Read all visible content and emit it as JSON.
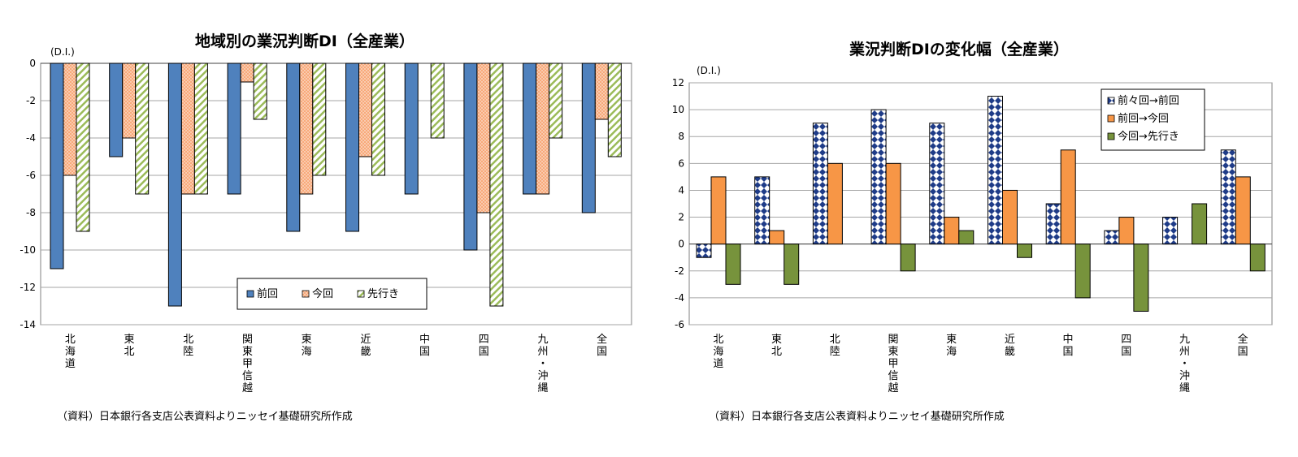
{
  "charts": [
    {
      "title": "地域別の業況判断DI（全産業）",
      "unit": "(D.I.)",
      "source": "（資料）日本銀行各支店公表資料よりニッセイ基礎研究所作成",
      "chart_data": {
        "type": "bar",
        "categories": [
          "北海道",
          "東北",
          "北陸",
          "関東甲信越",
          "東海",
          "近畿",
          "中国",
          "四国",
          "九州・沖縄",
          "全国"
        ],
        "series": [
          {
            "name": "前回",
            "values": [
              -11,
              -5,
              -13,
              -7,
              -9,
              -9,
              -7,
              -10,
              -7,
              -8
            ],
            "color": "#4f81bd",
            "pattern": "solid"
          },
          {
            "name": "今回",
            "values": [
              -6,
              -4,
              -7,
              -1,
              -7,
              -5,
              0,
              -8,
              -7,
              -3
            ],
            "color": "#f8a97a",
            "pattern": "dots"
          },
          {
            "name": "先行き",
            "values": [
              -9,
              -7,
              -7,
              -3,
              -6,
              -6,
              -4,
              -13,
              -4,
              -5
            ],
            "color": "#9bbb59",
            "pattern": "hatch"
          }
        ],
        "ylim": [
          -14,
          0
        ],
        "yticks": [
          "0",
          "-2",
          "-4",
          "-6",
          "-8",
          "-10",
          "-12",
          "-14"
        ],
        "grid": true,
        "legend": "bottom-right"
      }
    },
    {
      "title": "業況判断DIの変化幅（全産業）",
      "unit": "(D.I.)",
      "source": "（資料）日本銀行各支店公表資料よりニッセイ基礎研究所作成",
      "chart_data": {
        "type": "bar",
        "categories": [
          "北海道",
          "東北",
          "北陸",
          "関東甲信越",
          "東海",
          "近畿",
          "中国",
          "四国",
          "九州・沖縄",
          "全国"
        ],
        "series": [
          {
            "name": "前々回→前回",
            "values": [
              -1,
              5,
              9,
              10,
              9,
              11,
              3,
              1,
              2,
              7
            ],
            "color": "#1f3c88",
            "pattern": "diamond"
          },
          {
            "name": "前回→今回",
            "values": [
              5,
              1,
              6,
              6,
              2,
              4,
              7,
              2,
              0,
              5
            ],
            "color": "#f79646",
            "pattern": "solid"
          },
          {
            "name": "今回→先行き",
            "values": [
              -3,
              -3,
              0,
              -2,
              1,
              -1,
              -4,
              -5,
              3,
              -2
            ],
            "color": "#77933c",
            "pattern": "solid"
          }
        ],
        "ylim": [
          -6,
          12
        ],
        "yticks": [
          "12",
          "10",
          "8",
          "6",
          "4",
          "2",
          "0",
          "-2",
          "-4",
          "-6"
        ],
        "grid": true,
        "legend": "top-right"
      }
    }
  ]
}
